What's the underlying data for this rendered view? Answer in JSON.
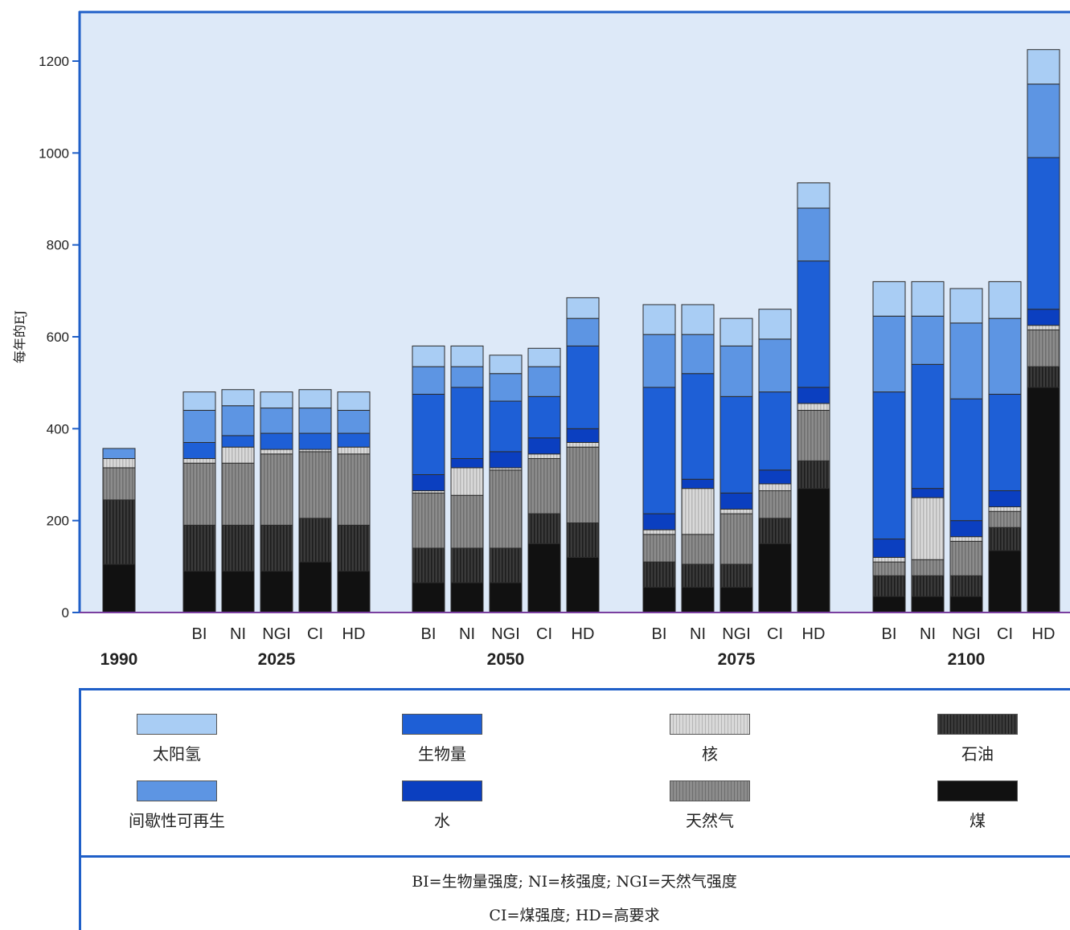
{
  "chart_data": {
    "type": "bar",
    "stacked": true,
    "ylabel": "每年的EJ",
    "ylim": [
      0,
      1200
    ],
    "yticks": [
      0,
      200,
      400,
      600,
      800,
      1000,
      1200
    ],
    "grid": false,
    "groups": [
      {
        "name": "1990",
        "bars": [
          {
            "label": "",
            "values": [
              105,
              140,
              70,
              20,
              0,
              0,
              22,
              0
            ]
          }
        ]
      },
      {
        "name": "2025",
        "bars": [
          {
            "label": "BI",
            "values": [
              90,
              100,
              135,
              10,
              0,
              35,
              70,
              40
            ]
          },
          {
            "label": "NI",
            "values": [
              90,
              100,
              135,
              35,
              0,
              25,
              65,
              35
            ]
          },
          {
            "label": "NGI",
            "values": [
              90,
              100,
              155,
              10,
              0,
              35,
              55,
              35
            ]
          },
          {
            "label": "CI",
            "values": [
              110,
              95,
              145,
              5,
              0,
              35,
              55,
              40
            ]
          },
          {
            "label": "HD",
            "values": [
              90,
              100,
              155,
              15,
              0,
              30,
              50,
              40
            ]
          }
        ]
      },
      {
        "name": "2050",
        "bars": [
          {
            "label": "BI",
            "values": [
              65,
              75,
              120,
              5,
              35,
              175,
              60,
              45
            ]
          },
          {
            "label": "NI",
            "values": [
              65,
              75,
              115,
              60,
              20,
              155,
              45,
              45
            ]
          },
          {
            "label": "NGI",
            "values": [
              65,
              75,
              170,
              5,
              35,
              110,
              60,
              40
            ]
          },
          {
            "label": "CI",
            "values": [
              150,
              65,
              120,
              10,
              35,
              90,
              65,
              40
            ]
          },
          {
            "label": "HD",
            "values": [
              120,
              75,
              165,
              10,
              30,
              180,
              60,
              45
            ]
          }
        ]
      },
      {
        "name": "2075",
        "bars": [
          {
            "label": "BI",
            "values": [
              55,
              55,
              60,
              10,
              35,
              275,
              115,
              65
            ]
          },
          {
            "label": "NI",
            "values": [
              55,
              50,
              65,
              100,
              20,
              230,
              85,
              65
            ]
          },
          {
            "label": "NGI",
            "values": [
              55,
              50,
              110,
              10,
              35,
              210,
              110,
              60
            ]
          },
          {
            "label": "CI",
            "values": [
              150,
              55,
              60,
              15,
              30,
              170,
              115,
              65
            ]
          },
          {
            "label": "HD",
            "values": [
              270,
              60,
              110,
              15,
              35,
              275,
              115,
              55
            ]
          }
        ]
      },
      {
        "name": "2100",
        "bars": [
          {
            "label": "BI",
            "values": [
              35,
              45,
              30,
              10,
              40,
              320,
              165,
              75
            ]
          },
          {
            "label": "NI",
            "values": [
              35,
              45,
              35,
              135,
              20,
              270,
              105,
              75
            ]
          },
          {
            "label": "NGI",
            "values": [
              35,
              45,
              75,
              10,
              35,
              265,
              165,
              75
            ]
          },
          {
            "label": "CI",
            "values": [
              135,
              50,
              35,
              10,
              35,
              210,
              165,
              80
            ]
          },
          {
            "label": "HD",
            "values": [
              490,
              45,
              80,
              10,
              35,
              330,
              160,
              75
            ]
          }
        ]
      }
    ],
    "series": [
      {
        "name": "煤",
        "color": "#111111",
        "pattern": "solid-dark"
      },
      {
        "name": "石油",
        "color": "#3a3a3a",
        "pattern": "dark-stripes"
      },
      {
        "name": "天然气",
        "color": "#8a8a8a",
        "pattern": "grey-stripes"
      },
      {
        "name": "核",
        "color": "#cfcfcf",
        "pattern": "light-stripes"
      },
      {
        "name": "水",
        "color": "#0b3fc0"
      },
      {
        "name": "生物量",
        "color": "#1e5fd6"
      },
      {
        "name": "间歇性可再生",
        "color": "#5d95e3"
      },
      {
        "name": "太阳氢",
        "color": "#a9cdf4"
      }
    ]
  },
  "legend": {
    "row1": [
      "太阳氢",
      "生物量",
      "核",
      "石油"
    ],
    "row2": [
      "间歇性可再生",
      "水",
      "天然气",
      "煤"
    ]
  },
  "notes": {
    "line1": "BI=生物量强度; NI=核强度; NGI=天然气强度",
    "line2": "CI=煤强度; HD=高要求"
  },
  "colors": {
    "plot_background": "#dde9f8",
    "frame": "#1f5fc8",
    "baseline": "#7a3fa0"
  }
}
